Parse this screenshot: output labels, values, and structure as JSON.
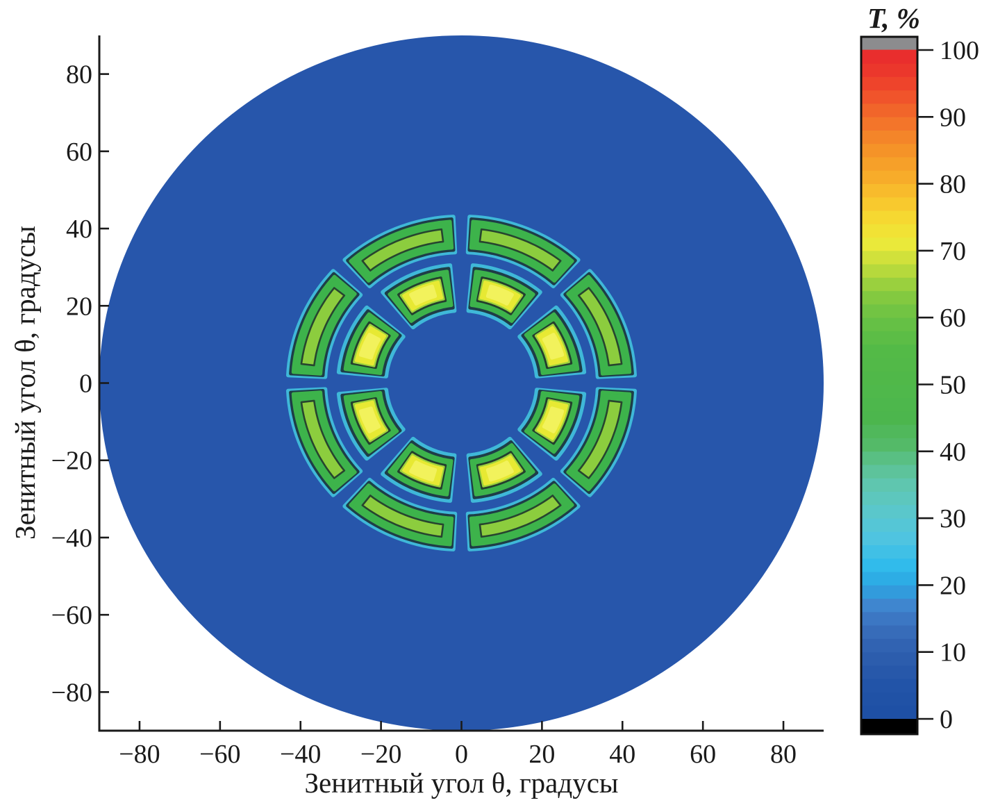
{
  "chart_data": {
    "type": "heatmap",
    "subtype": "filled contour map, polar sky projection",
    "title": "",
    "xlabel": "Зенитный угол θ, градусы",
    "ylabel": "Зенитный угол θ, градусы",
    "xlim": [
      -90,
      90
    ],
    "ylim": [
      -90,
      90
    ],
    "x_ticks": [
      -80,
      -60,
      -40,
      -20,
      0,
      20,
      40,
      60,
      80
    ],
    "y_ticks": [
      -80,
      -60,
      -40,
      -20,
      0,
      20,
      40,
      60,
      80
    ],
    "grid": false,
    "disk": {
      "radius_deg": 90,
      "background_value_percent": 3,
      "color": "#2756ab",
      "description": "Full sky disk of radius 90° with transmittance T≈0–5% (dark blue) everywhere except two concentric rings of transmitting windows"
    },
    "features": {
      "outer_ring": {
        "count": 8,
        "shape": "elongated rounded arc segments",
        "radial_extent_deg": [
          34.5,
          42.5
        ],
        "azimuth_centers_deg": [
          22.5,
          67.5,
          112.5,
          157.5,
          202.5,
          247.5,
          292.5,
          337.5
        ],
        "azimuth_half_span_deg": 19,
        "peak_T_percent": 62,
        "layers": [
          {
            "r1": 33.9,
            "r2": 43.1,
            "h": 19.8,
            "color": "#3fb8d8",
            "lw": 6
          },
          {
            "r1": 34.5,
            "r2": 42.5,
            "h": 19.2,
            "color": "#1e3d47",
            "lw": 5
          },
          {
            "r1": 35.1,
            "r2": 41.9,
            "h": 18.6,
            "color": "#3db34b",
            "lw": 5
          },
          {
            "r1": 36.9,
            "r2": 40.1,
            "h": 15.4,
            "color": "#8ccd3e",
            "lw": 0,
            "stroke": "#27452f",
            "slw": 2.6
          }
        ]
      },
      "inner_ring": {
        "count": 8,
        "shape": "rounded wedge lobes with yellow cores",
        "radial_extent_deg": [
          20,
          29.5
        ],
        "azimuth_centers_deg": [
          22.5,
          67.5,
          112.5,
          157.5,
          202.5,
          247.5,
          292.5,
          337.5
        ],
        "azimuth_half_span_deg": 15.5,
        "peak_T_percent": 74,
        "layers": [
          {
            "r1": 18.8,
            "r2": 30.6,
            "h": 17.2,
            "color": "#3fb8d8",
            "lw": 6
          },
          {
            "r1": 19.6,
            "r2": 29.8,
            "h": 16.3,
            "color": "#1e3d47",
            "lw": 5
          },
          {
            "r1": 20.3,
            "r2": 29.1,
            "h": 15.4,
            "color": "#3db34b",
            "lw": 5
          },
          {
            "r1": 21.7,
            "r2": 27.7,
            "h": 11.8,
            "color": "#233f2e",
            "lw": 4
          },
          {
            "r1": 22.2,
            "r2": 27.2,
            "h": 10.9,
            "color": "#9ed23c",
            "lw": 4
          },
          {
            "r1": 22.6,
            "r2": 26.8,
            "h": 10.0,
            "color": "#e7e933",
            "lw": 4
          },
          {
            "r1": 23.4,
            "r2": 26.1,
            "h": 6.3,
            "color": "#f2f25c",
            "lw": 5
          }
        ]
      }
    },
    "colorbar": {
      "title": "T, %",
      "min": 0,
      "max": 100,
      "ticks": [
        0,
        10,
        20,
        30,
        40,
        50,
        60,
        70,
        80,
        90,
        100
      ],
      "band_step": 2,
      "over_color": "#8c8c8e",
      "under_color": "#000000",
      "outline_color": "#111111",
      "stops": [
        [
          0,
          "#1d4fa4"
        ],
        [
          5,
          "#2254a8"
        ],
        [
          10,
          "#2e5fae"
        ],
        [
          14,
          "#3a70bd"
        ],
        [
          17,
          "#3f86cf"
        ],
        [
          20,
          "#2ba6e2"
        ],
        [
          23,
          "#31bbeb"
        ],
        [
          27,
          "#4fc4e0"
        ],
        [
          31,
          "#5ac7cb"
        ],
        [
          35,
          "#5fc6af"
        ],
        [
          38,
          "#5cc291"
        ],
        [
          41,
          "#54ba68"
        ],
        [
          45,
          "#4cb64d"
        ],
        [
          55,
          "#53ba47"
        ],
        [
          60,
          "#69c144"
        ],
        [
          64,
          "#8ccc3f"
        ],
        [
          68,
          "#c4dd3b"
        ],
        [
          71,
          "#eae93a"
        ],
        [
          74,
          "#f5df33"
        ],
        [
          77,
          "#f8c92e"
        ],
        [
          81,
          "#f7ac2a"
        ],
        [
          86,
          "#f58d28"
        ],
        [
          90,
          "#f26d2a"
        ],
        [
          94,
          "#ef4b2b"
        ],
        [
          98,
          "#e9302c"
        ],
        [
          100,
          "#e82b2e"
        ]
      ],
      "legend_position": "right"
    },
    "axis_color": "#1a1a1a",
    "minus_sign": "−"
  }
}
